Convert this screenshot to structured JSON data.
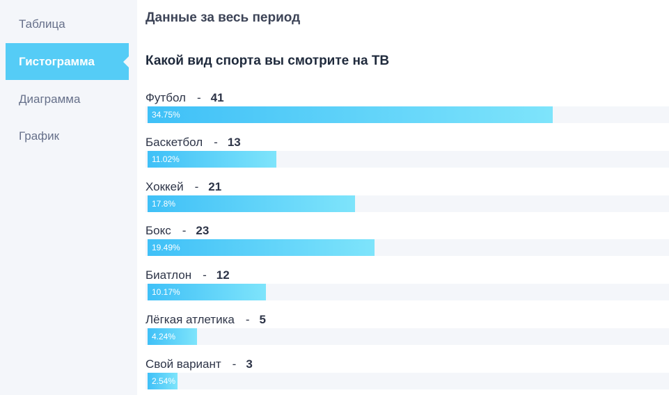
{
  "sidebar": {
    "items": [
      {
        "label": "Таблица",
        "active": false
      },
      {
        "label": "Гистограмма",
        "active": true
      },
      {
        "label": "Диаграмма",
        "active": false
      },
      {
        "label": "График",
        "active": false
      }
    ]
  },
  "main": {
    "period_title": "Данные за весь период",
    "question_title": "Какой вид спорта вы смотрите на ТВ",
    "separator": "-"
  },
  "colors": {
    "accent": "#55ccf6",
    "bar_start": "#3fc0f7",
    "bar_end": "#7ee4fb",
    "track": "#f4f6fa"
  },
  "chart_data": {
    "type": "bar",
    "orientation": "horizontal",
    "title": "Какой вид спорта вы смотрите на ТВ",
    "categories": [
      "Футбол",
      "Баскетбол",
      "Хоккей",
      "Бокс",
      "Биатлон",
      "Лёгкая атлетика",
      "Свой вариант"
    ],
    "values": [
      41,
      13,
      21,
      23,
      12,
      5,
      3
    ],
    "percent_labels": [
      "34.75%",
      "11.02%",
      "17.8%",
      "19.49%",
      "10.17%",
      "4.24%",
      "2.54%"
    ],
    "percents": [
      34.75,
      11.02,
      17.8,
      19.49,
      10.17,
      4.24,
      2.54
    ],
    "xlim": [
      0,
      41
    ]
  }
}
